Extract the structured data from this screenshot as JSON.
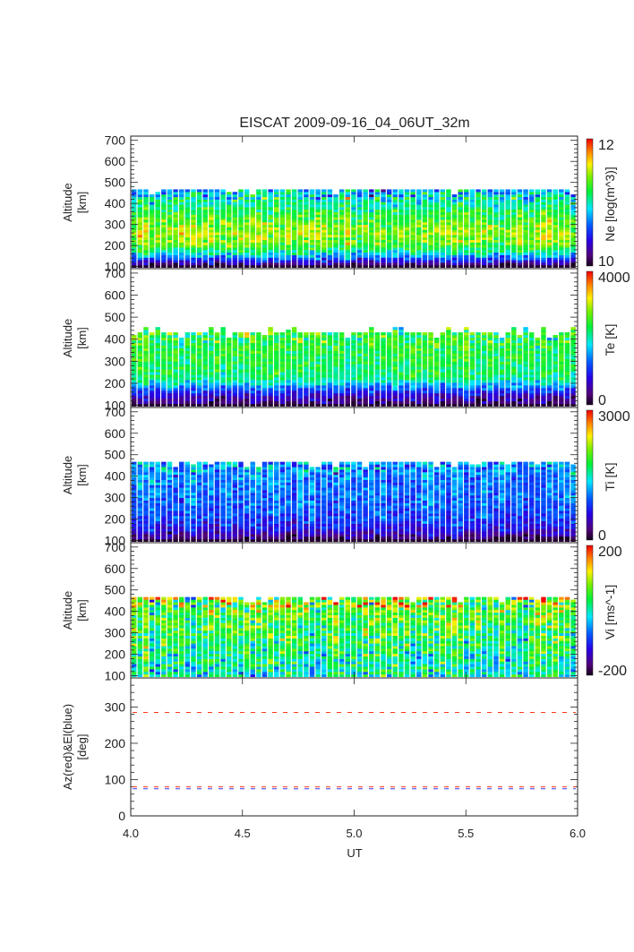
{
  "chart_data": {
    "type": "heatmap",
    "title": "EISCAT 2009-09-16_04_06UT_32m",
    "xlabel": "UT",
    "xlim": [
      4.0,
      6.0
    ],
    "xticks": [
      "4.0",
      "4.5",
      "5.0",
      "5.5",
      "6.0"
    ],
    "xtick_values": [
      4.0,
      4.5,
      5.0,
      5.5,
      6.0
    ],
    "n_time_columns": 75,
    "panels": [
      {
        "name": "Ne",
        "ylabel": "Altitude [km]",
        "ylabel_lines": [
          "Altitude",
          "[km]"
        ],
        "ylim": [
          90,
          720
        ],
        "yticks": [
          100,
          200,
          300,
          400,
          500,
          600,
          700
        ],
        "colorbar_label": "Ne [log(m^3)]",
        "colorbar_range": [
          10,
          12
        ],
        "colorbar_ticks": [
          "10",
          "12"
        ],
        "altitude_top_km": 465,
        "altitude_bottom_km": 95,
        "profile_altitudes": [
          100,
          130,
          160,
          200,
          250,
          300,
          350,
          400,
          465
        ],
        "profile_values": [
          10.1,
          10.6,
          11.0,
          11.35,
          11.45,
          11.35,
          11.2,
          11.0,
          10.8
        ],
        "noise": 0.18
      },
      {
        "name": "Te",
        "ylabel": "Altitude [km]",
        "ylabel_lines": [
          "Altitude",
          "[km]"
        ],
        "ylim": [
          90,
          720
        ],
        "yticks": [
          100,
          200,
          300,
          400,
          500,
          600,
          700
        ],
        "colorbar_label": "Te [K]",
        "colorbar_range": [
          0,
          4000
        ],
        "colorbar_ticks": [
          "0",
          "4000"
        ],
        "altitude_top_km": 420,
        "altitude_bottom_km": 95,
        "profile_altitudes": [
          100,
          130,
          160,
          190,
          220,
          260,
          300,
          350,
          420
        ],
        "profile_values": [
          300,
          600,
          1100,
          1700,
          2200,
          2300,
          2350,
          2400,
          2450
        ],
        "noise": 300
      },
      {
        "name": "Ti",
        "ylabel": "Altitude [km]",
        "ylabel_lines": [
          "Altitude",
          "[km]"
        ],
        "ylim": [
          90,
          720
        ],
        "yticks": [
          100,
          200,
          300,
          400,
          500,
          600,
          700
        ],
        "colorbar_label": "Ti [K]",
        "colorbar_range": [
          0,
          3000
        ],
        "colorbar_ticks": [
          "0",
          "3000"
        ],
        "altitude_top_km": 465,
        "altitude_bottom_km": 95,
        "profile_altitudes": [
          100,
          130,
          160,
          200,
          250,
          300,
          350,
          400,
          465
        ],
        "profile_values": [
          200,
          500,
          700,
          850,
          950,
          1000,
          1050,
          1100,
          1150
        ],
        "noise": 220
      },
      {
        "name": "Vi",
        "ylabel": "Altitude [km]",
        "ylabel_lines": [
          "Altitude",
          "[km]"
        ],
        "ylim": [
          90,
          720
        ],
        "yticks": [
          100,
          200,
          300,
          400,
          500,
          600,
          700
        ],
        "colorbar_label": "Vi [ms^-1]",
        "colorbar_range": [
          -200,
          200
        ],
        "colorbar_ticks": [
          "-200",
          "200"
        ],
        "altitude_top_km": 465,
        "altitude_bottom_km": 95,
        "profile_altitudes": [
          100,
          200,
          300,
          400,
          465
        ],
        "profile_values": [
          0,
          20,
          40,
          60,
          80
        ],
        "noise": 55
      }
    ],
    "line_panel": {
      "ylabel_lines": [
        "Az(red)&El(blue)",
        "[deg]"
      ],
      "ylim": [
        0,
        380
      ],
      "yticks": [
        0,
        100,
        200,
        300
      ],
      "series": [
        {
          "name": "Az",
          "color": "#ff3a1a",
          "values_deg": [
            285,
            80
          ],
          "style": "dashed"
        },
        {
          "name": "El",
          "color": "#3c3cff",
          "values_deg": [
            77
          ],
          "style": "dashed"
        }
      ]
    }
  }
}
